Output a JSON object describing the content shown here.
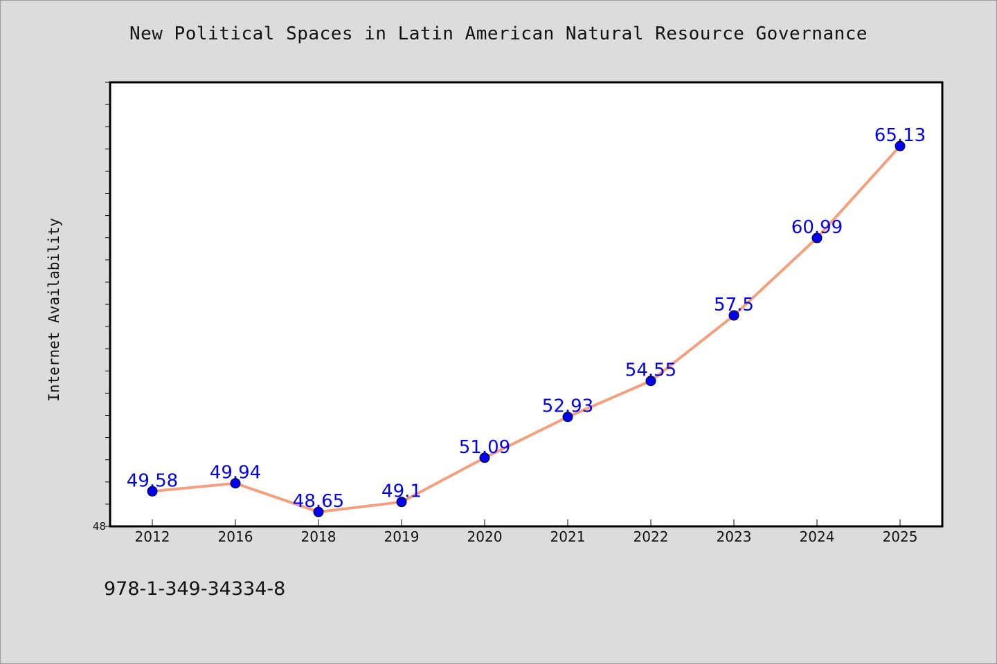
{
  "chart_data": {
    "type": "line",
    "title": "New Political Spaces in Latin American Natural Resource Governance",
    "ylabel": "Internet Availability",
    "xlabel": "",
    "categories": [
      "2012",
      "2016",
      "2018",
      "2019",
      "2020",
      "2021",
      "2022",
      "2023",
      "2024",
      "2025"
    ],
    "series": [
      {
        "values": [
          49.58,
          49.94,
          48.65,
          49.1,
          51.09,
          52.93,
          54.55,
          57.5,
          60.99,
          65.13
        ],
        "data_labels": [
          "49.58",
          "49.94",
          "48.65",
          "49.1",
          "51.09",
          "52.93",
          "54.55",
          "57.5",
          "60.99",
          "65.13"
        ],
        "line_color": "#f4a07e",
        "marker_color": "#0000ee",
        "label_color": "#0000ee"
      }
    ],
    "ylim": [
      48,
      68
    ],
    "y_tick_labels": [
      "48"
    ],
    "grid": false,
    "legend": "none"
  },
  "footer_text": "978-1-349-34334-8",
  "colors": {
    "background": "#dcdcdc",
    "plot_background": "#ffffff",
    "axis": "#000000"
  }
}
